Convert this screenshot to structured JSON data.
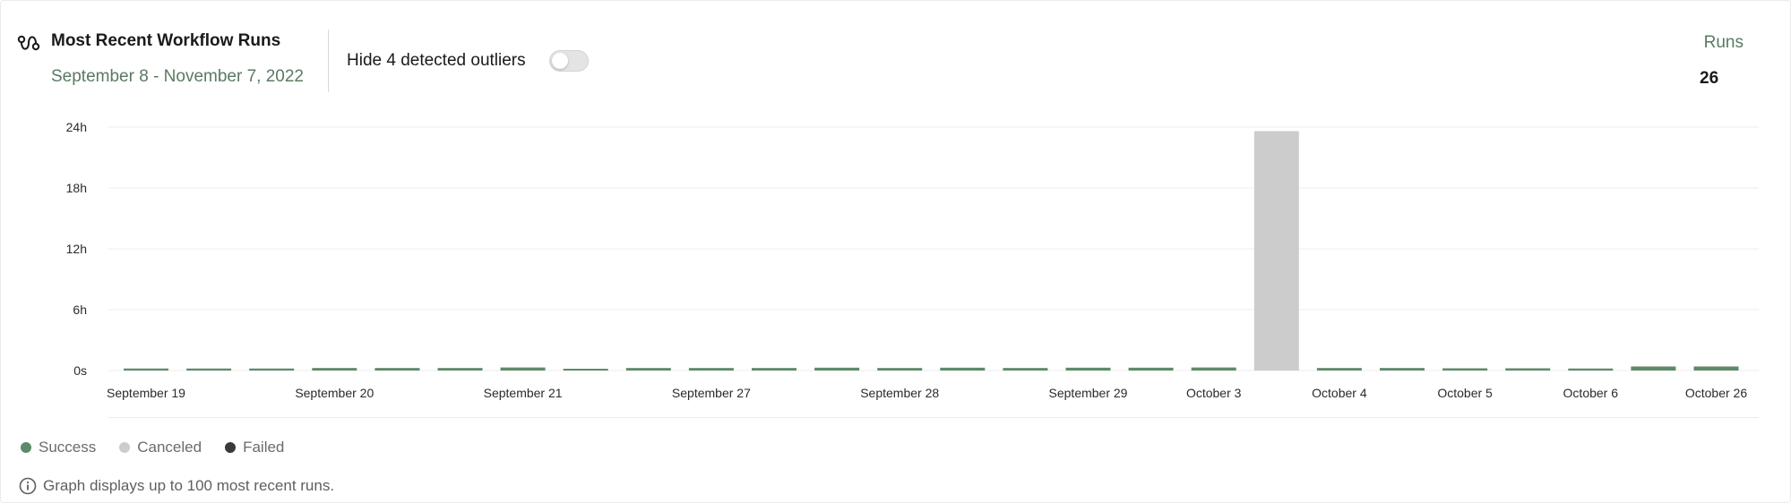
{
  "header": {
    "title": "Most Recent Workflow Runs",
    "date_range": "September 8 - November 7, 2022",
    "outlier_toggle_label": "Hide 4 detected outliers",
    "outlier_toggle_on": false,
    "runs_label": "Runs",
    "runs_count": "26"
  },
  "icons": {
    "title": "workflow-icon",
    "footnote": "info-icon"
  },
  "colors": {
    "success": "#5f8a69",
    "canceled": "#cccccc",
    "failed": "#3a3a3a",
    "grid": "#ececec",
    "axis_text": "#2a2a2a"
  },
  "chart_data": {
    "type": "bar",
    "title": "Most Recent Workflow Runs",
    "xlabel": "",
    "ylabel": "",
    "y_unit": "h",
    "ylim": [
      0,
      24
    ],
    "yticks": [
      0,
      6,
      12,
      18,
      24
    ],
    "ytick_labels": [
      "0s",
      "6h",
      "12h",
      "18h",
      "24h"
    ],
    "grid": true,
    "legend_position": "bottom-left",
    "x_tick_labels": [
      "September 19",
      "September 20",
      "September 21",
      "September 27",
      "September 28",
      "September 29",
      "October 3",
      "October 4",
      "October 5",
      "October 6",
      "October 26"
    ],
    "x_tick_bar_index": [
      0,
      3,
      6,
      9,
      12,
      15,
      17,
      19,
      21,
      23,
      25
    ],
    "bars": [
      {
        "status": "Success",
        "hours": 0.2
      },
      {
        "status": "Success",
        "hours": 0.2
      },
      {
        "status": "Success",
        "hours": 0.2
      },
      {
        "status": "Success",
        "hours": 0.25
      },
      {
        "status": "Success",
        "hours": 0.25
      },
      {
        "status": "Success",
        "hours": 0.25
      },
      {
        "status": "Success",
        "hours": 0.3
      },
      {
        "status": "Success",
        "hours": 0.12
      },
      {
        "status": "Success",
        "hours": 0.25
      },
      {
        "status": "Success",
        "hours": 0.25
      },
      {
        "status": "Success",
        "hours": 0.25
      },
      {
        "status": "Success",
        "hours": 0.28
      },
      {
        "status": "Success",
        "hours": 0.25
      },
      {
        "status": "Success",
        "hours": 0.28
      },
      {
        "status": "Success",
        "hours": 0.25
      },
      {
        "status": "Success",
        "hours": 0.28
      },
      {
        "status": "Success",
        "hours": 0.28
      },
      {
        "status": "Success",
        "hours": 0.3
      },
      {
        "status": "Canceled",
        "hours": 23.6
      },
      {
        "status": "Success",
        "hours": 0.25
      },
      {
        "status": "Success",
        "hours": 0.25
      },
      {
        "status": "Success",
        "hours": 0.22
      },
      {
        "status": "Success",
        "hours": 0.22
      },
      {
        "status": "Success",
        "hours": 0.2
      },
      {
        "status": "Success",
        "hours": 0.4
      },
      {
        "status": "Success",
        "hours": 0.4
      }
    ],
    "legend": [
      {
        "name": "Success",
        "color": "#5f8a69"
      },
      {
        "name": "Canceled",
        "color": "#cccccc"
      },
      {
        "name": "Failed",
        "color": "#3a3a3a"
      }
    ]
  },
  "footnote": "Graph displays up to 100 most recent runs."
}
